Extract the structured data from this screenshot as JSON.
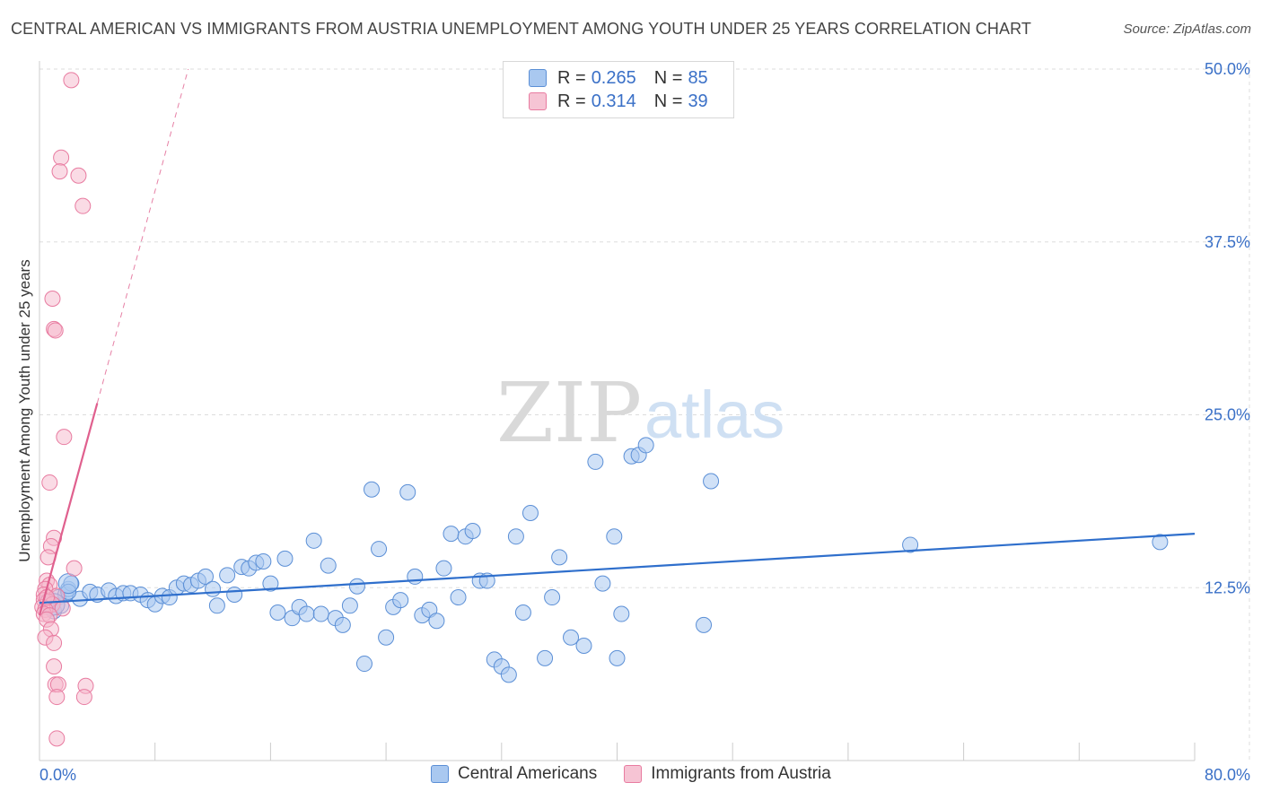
{
  "title": "CENTRAL AMERICAN VS IMMIGRANTS FROM AUSTRIA UNEMPLOYMENT AMONG YOUTH UNDER 25 YEARS CORRELATION CHART",
  "source": "Source: ZipAtlas.com",
  "watermark": {
    "zip": "ZIP",
    "atlas": "atlas"
  },
  "legend_top": [
    {
      "r_label": "R =",
      "r_value": "0.265",
      "n_label": "N =",
      "n_value": "85"
    },
    {
      "r_label": "R =",
      "r_value": "0.314",
      "n_label": "N =",
      "n_value": "39"
    }
  ],
  "legend_bottom": [
    "Central Americans",
    "Immigrants from Austria"
  ],
  "colors": {
    "blue_fill": "#a9c8f0",
    "blue_stroke": "#5b8fd6",
    "blue_line": "#2f6fcc",
    "pink_fill": "#f6b8cc",
    "pink_stroke": "#e87ba0",
    "pink_line": "#e0608e",
    "tick_label": "#3a70c7",
    "grid": "#dddddd"
  },
  "chart_data": {
    "type": "scatter",
    "title": "CENTRAL AMERICAN VS IMMIGRANTS FROM AUSTRIA UNEMPLOYMENT AMONG YOUTH UNDER 25 YEARS CORRELATION CHART",
    "xlabel": "",
    "ylabel": "Unemployment Among Youth under 25 years",
    "xlim": [
      0,
      80
    ],
    "ylim": [
      0,
      50
    ],
    "x_tick_labels": [
      "0.0%",
      "80.0%"
    ],
    "y_ticks": [
      12.5,
      25.0,
      37.5,
      50.0
    ],
    "y_tick_labels": [
      "12.5%",
      "25.0%",
      "37.5%",
      "50.0%"
    ],
    "grid": true,
    "series": [
      {
        "name": "Central Americans",
        "r": 0.265,
        "n": 85,
        "trend": {
          "x": [
            0,
            80
          ],
          "y": [
            11.4,
            16.4
          ],
          "dashed_after": null
        },
        "points": [
          [
            0.5,
            11.5
          ],
          [
            0.8,
            11.0
          ],
          [
            1.0,
            10.8
          ],
          [
            1.3,
            11.8
          ],
          [
            1.5,
            11.2
          ],
          [
            1.8,
            12.0
          ],
          [
            2.0,
            12.4
          ],
          [
            2.2,
            12.8
          ],
          [
            2.8,
            11.7
          ],
          [
            3.5,
            12.2
          ],
          [
            4.0,
            12.0
          ],
          [
            4.8,
            12.3
          ],
          [
            5.3,
            11.9
          ],
          [
            5.8,
            12.1
          ],
          [
            6.3,
            12.1
          ],
          [
            7.0,
            12.0
          ],
          [
            7.5,
            11.6
          ],
          [
            8.0,
            11.3
          ],
          [
            8.5,
            11.9
          ],
          [
            9.0,
            11.8
          ],
          [
            9.5,
            12.5
          ],
          [
            10.0,
            12.8
          ],
          [
            10.5,
            12.7
          ],
          [
            11.0,
            13.0
          ],
          [
            11.5,
            13.3
          ],
          [
            12.0,
            12.4
          ],
          [
            12.3,
            11.2
          ],
          [
            13.0,
            13.4
          ],
          [
            13.5,
            12.0
          ],
          [
            14.0,
            14.0
          ],
          [
            14.5,
            13.9
          ],
          [
            15.0,
            14.3
          ],
          [
            15.5,
            14.4
          ],
          [
            16.0,
            12.8
          ],
          [
            16.5,
            10.7
          ],
          [
            17.0,
            14.6
          ],
          [
            17.5,
            10.3
          ],
          [
            18.0,
            11.1
          ],
          [
            18.5,
            10.6
          ],
          [
            19.0,
            15.9
          ],
          [
            19.5,
            10.6
          ],
          [
            20.0,
            14.1
          ],
          [
            20.5,
            10.3
          ],
          [
            21.0,
            9.8
          ],
          [
            21.5,
            11.2
          ],
          [
            22.0,
            12.6
          ],
          [
            22.5,
            7.0
          ],
          [
            23.0,
            19.6
          ],
          [
            23.5,
            15.3
          ],
          [
            24.0,
            8.9
          ],
          [
            24.5,
            11.1
          ],
          [
            25.0,
            11.6
          ],
          [
            25.5,
            19.4
          ],
          [
            26.0,
            13.3
          ],
          [
            26.5,
            10.5
          ],
          [
            27.0,
            10.9
          ],
          [
            27.5,
            10.1
          ],
          [
            28.0,
            13.9
          ],
          [
            28.5,
            16.4
          ],
          [
            29.0,
            11.8
          ],
          [
            29.5,
            16.2
          ],
          [
            30.0,
            16.6
          ],
          [
            30.5,
            13.0
          ],
          [
            31.0,
            13.0
          ],
          [
            31.5,
            7.3
          ],
          [
            32.0,
            6.8
          ],
          [
            32.5,
            6.2
          ],
          [
            33.0,
            16.2
          ],
          [
            33.5,
            10.7
          ],
          [
            34.0,
            17.9
          ],
          [
            35.0,
            7.4
          ],
          [
            35.5,
            11.8
          ],
          [
            36.0,
            14.7
          ],
          [
            36.8,
            8.9
          ],
          [
            37.7,
            8.3
          ],
          [
            38.5,
            21.6
          ],
          [
            39.0,
            12.8
          ],
          [
            39.8,
            16.2
          ],
          [
            40.0,
            7.4
          ],
          [
            40.3,
            10.6
          ],
          [
            41.0,
            22.0
          ],
          [
            41.5,
            22.1
          ],
          [
            42.0,
            22.8
          ],
          [
            46.5,
            20.2
          ],
          [
            46.0,
            9.8
          ],
          [
            60.3,
            15.6
          ],
          [
            77.6,
            15.8
          ],
          [
            2.0,
            12.2
          ]
        ]
      },
      {
        "name": "Immigrants from Austria",
        "r": 0.314,
        "n": 39,
        "trend": {
          "x": [
            0,
            10.3
          ],
          "y": [
            10.5,
            50.0
          ],
          "solid_until_x": 4.0
        },
        "points": [
          [
            2.2,
            49.2
          ],
          [
            1.5,
            43.6
          ],
          [
            1.4,
            42.6
          ],
          [
            2.7,
            42.3
          ],
          [
            3.0,
            40.1
          ],
          [
            0.9,
            33.4
          ],
          [
            1.0,
            31.2
          ],
          [
            1.1,
            31.1
          ],
          [
            1.7,
            23.4
          ],
          [
            0.7,
            20.1
          ],
          [
            1.0,
            16.1
          ],
          [
            0.8,
            15.5
          ],
          [
            0.6,
            14.7
          ],
          [
            2.4,
            13.9
          ],
          [
            0.5,
            13.0
          ],
          [
            0.7,
            12.7
          ],
          [
            0.4,
            12.4
          ],
          [
            0.3,
            12.0
          ],
          [
            1.2,
            11.9
          ],
          [
            0.3,
            11.6
          ],
          [
            0.6,
            11.5
          ],
          [
            0.9,
            11.3
          ],
          [
            0.2,
            11.1
          ],
          [
            1.6,
            11.0
          ],
          [
            0.4,
            10.9
          ],
          [
            0.3,
            10.6
          ],
          [
            0.7,
            10.5
          ],
          [
            0.5,
            10.2
          ],
          [
            0.8,
            9.5
          ],
          [
            0.4,
            8.9
          ],
          [
            1.0,
            8.5
          ],
          [
            1.0,
            6.8
          ],
          [
            1.1,
            5.5
          ],
          [
            1.3,
            5.5
          ],
          [
            3.2,
            5.4
          ],
          [
            1.2,
            4.6
          ],
          [
            3.1,
            4.6
          ],
          [
            1.2,
            1.6
          ],
          [
            0.5,
            11.8
          ]
        ]
      }
    ]
  }
}
